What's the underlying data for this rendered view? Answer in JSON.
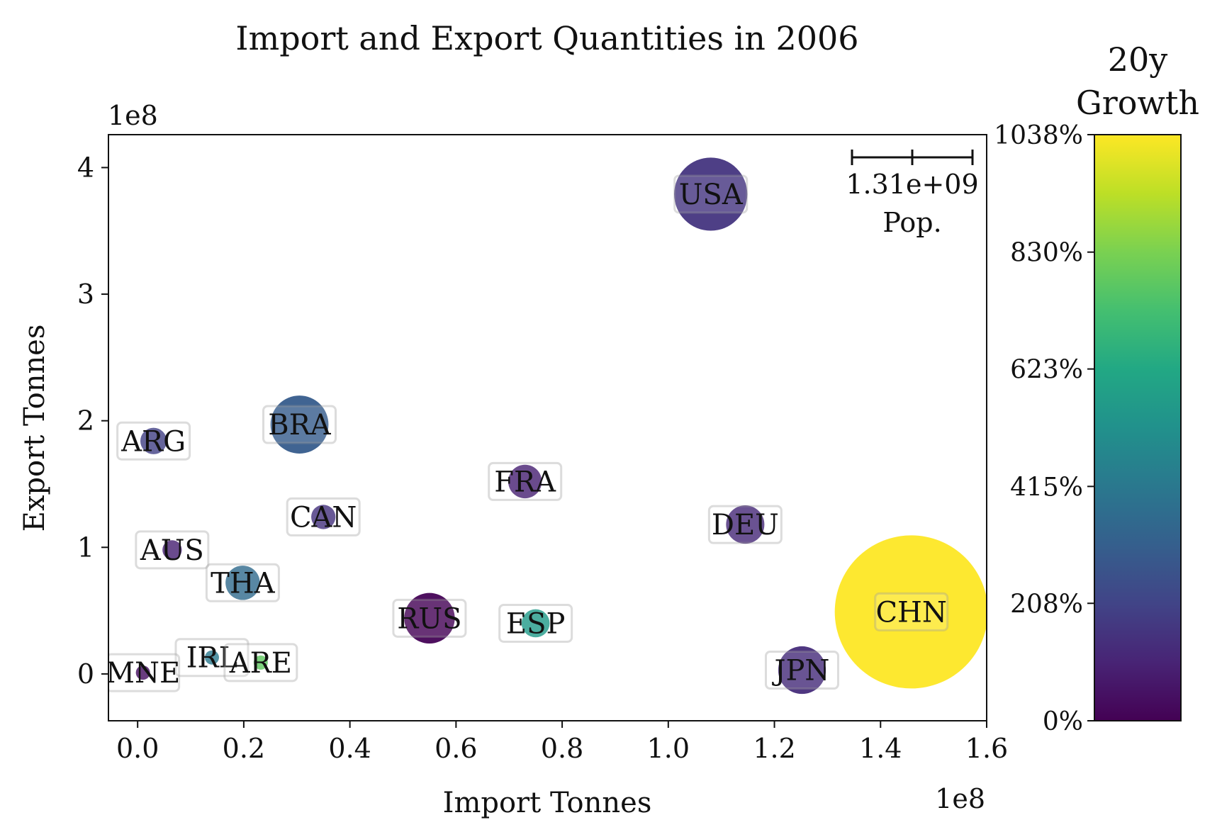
{
  "chart_data": {
    "type": "scatter",
    "title": "Import and Export Quantities in 2006",
    "xlabel": "Import Tonnes",
    "ylabel": "Export Tonnes",
    "x_offset_label": "1e8",
    "y_offset_label": "1e8",
    "xlim": [
      -0.055,
      1.6
    ],
    "ylim": [
      -0.37,
      4.26
    ],
    "x_ticks": [
      0.0,
      0.2,
      0.4,
      0.6,
      0.8,
      1.0,
      1.2,
      1.4,
      1.6
    ],
    "x_tick_labels": [
      "0.0",
      "0.2",
      "0.4",
      "0.6",
      "0.8",
      "1.0",
      "1.2",
      "1.4",
      "1.6"
    ],
    "y_ticks": [
      0,
      1,
      2,
      3,
      4
    ],
    "y_tick_labels": [
      "0",
      "1",
      "2",
      "3",
      "4"
    ],
    "points": [
      {
        "label": "USA",
        "x": 1.08,
        "y": 3.79,
        "pop": 0.299,
        "growth": 160
      },
      {
        "label": "BRA",
        "x": 0.305,
        "y": 1.97,
        "pop": 0.188,
        "growth": 300
      },
      {
        "label": "ARG",
        "x": 0.03,
        "y": 1.84,
        "pop": 0.039,
        "growth": 195
      },
      {
        "label": "FRA",
        "x": 0.73,
        "y": 1.52,
        "pop": 0.063,
        "growth": 95
      },
      {
        "label": "CAN",
        "x": 0.35,
        "y": 1.24,
        "pop": 0.033,
        "growth": 150
      },
      {
        "label": "DEU",
        "x": 1.145,
        "y": 1.18,
        "pop": 0.082,
        "growth": 120
      },
      {
        "label": "AUS",
        "x": 0.065,
        "y": 0.98,
        "pop": 0.021,
        "growth": 95
      },
      {
        "label": "THA",
        "x": 0.198,
        "y": 0.72,
        "pop": 0.066,
        "growth": 360
      },
      {
        "label": "RUS",
        "x": 0.55,
        "y": 0.44,
        "pop": 0.143,
        "growth": 5
      },
      {
        "label": "ESP",
        "x": 0.75,
        "y": 0.4,
        "pop": 0.044,
        "growth": 560
      },
      {
        "label": "IRL",
        "x": 0.14,
        "y": 0.13,
        "pop": 0.0043,
        "growth": 420
      },
      {
        "label": "ARE",
        "x": 0.232,
        "y": 0.09,
        "pop": 0.0045,
        "growth": 780
      },
      {
        "label": "MNE",
        "x": 0.01,
        "y": 0.01,
        "pop": 0.0006,
        "growth": 40
      },
      {
        "label": "JPN",
        "x": 1.252,
        "y": 0.03,
        "pop": 0.127,
        "growth": 130
      },
      {
        "label": "CHN",
        "x": 1.458,
        "y": 0.49,
        "pop": 1.31,
        "growth": 1038
      }
    ],
    "size_legend": {
      "value_label": "1.31e+09",
      "label": "Pop."
    },
    "colorbar": {
      "title": "20y Growth",
      "title_line1": "20y",
      "title_line2": "Growth",
      "range": [
        0,
        1038
      ],
      "ticks": [
        0,
        208,
        415,
        623,
        830,
        1038
      ],
      "tick_labels": [
        "0%",
        "208%",
        "415%",
        "623%",
        "830%",
        "1038%"
      ],
      "colormap": "viridis"
    },
    "grid": false
  }
}
